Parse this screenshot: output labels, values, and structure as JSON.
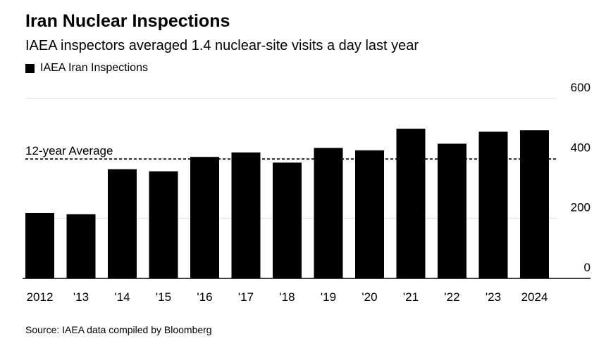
{
  "header": {
    "title": "Iran Nuclear Inspections",
    "subtitle": "IAEA inspectors averaged 1.4 nuclear-site visits a day last year"
  },
  "legend": {
    "label": "IAEA Iran Inspections"
  },
  "footer": {
    "source": "Source: IAEA data compiled by Bloomberg"
  },
  "chart_data": {
    "type": "bar",
    "title": "Iran Nuclear Inspections",
    "subtitle": "IAEA inspectors averaged 1.4 nuclear-site visits a day last year",
    "categories": [
      "2012",
      "'13",
      "'14",
      "'15",
      "'16",
      "'17",
      "'18",
      "'19",
      "'20",
      "'21",
      "'22",
      "'23",
      "2024"
    ],
    "series": [
      {
        "name": "IAEA Iran Inspections",
        "values": [
          218,
          214,
          364,
          357,
          405,
          420,
          386,
          435,
          427,
          499,
          449,
          489,
          494
        ]
      }
    ],
    "reference_line": {
      "label": "12-year Average",
      "value": 398
    },
    "ylim": [
      0,
      600
    ],
    "yticks": [
      0,
      200,
      400,
      600
    ],
    "ytick_labels": [
      "0",
      "200",
      "400",
      "600"
    ],
    "xlabel": "",
    "ylabel": "",
    "grid": true,
    "colors": {
      "bar": "#000000",
      "grid": "#e0e0e0",
      "axis": "#000000",
      "reference": "#000000"
    }
  }
}
